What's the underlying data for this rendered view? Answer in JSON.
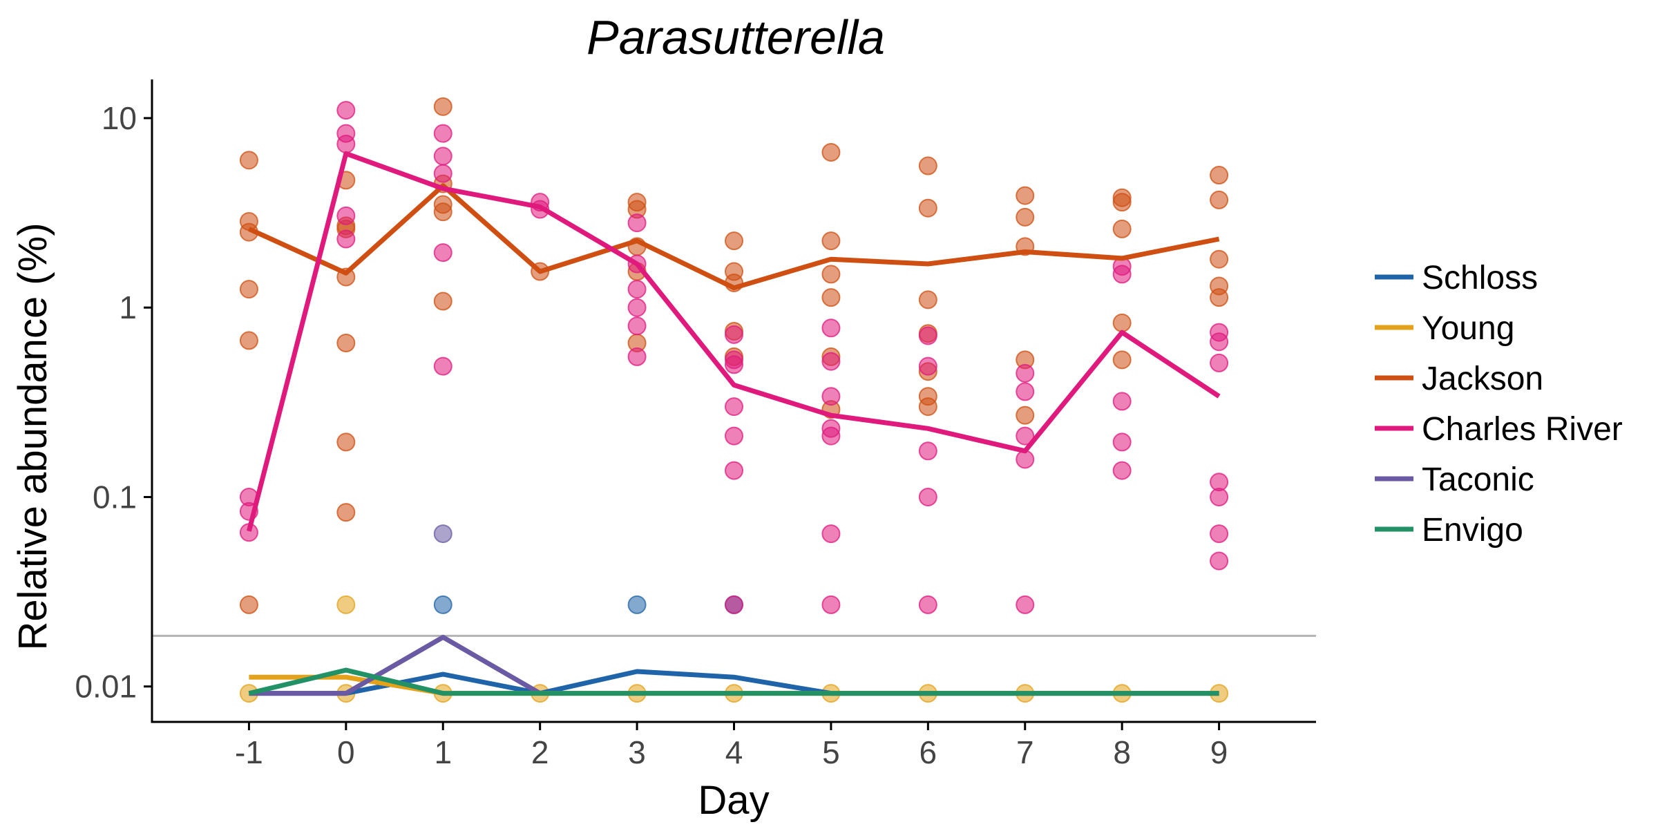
{
  "chart_data": {
    "type": "line",
    "title": "Parasutterella",
    "xlabel": "Day",
    "ylabel": "Relative abundance (%)",
    "x_ticks": [
      -1,
      0,
      1,
      2,
      3,
      4,
      5,
      6,
      7,
      8,
      9
    ],
    "x_tick_labels": [
      "-1",
      "0",
      "1",
      "2",
      "3",
      "4",
      "5",
      "6",
      "7",
      "8",
      "9"
    ],
    "xlim": [
      -2,
      10
    ],
    "y_scale": "log",
    "ylim": [
      0.0065,
      16
    ],
    "y_ticks": [
      0.01,
      0.1,
      1,
      10
    ],
    "y_tick_labels": [
      "0.01",
      "0.1",
      "1",
      "10"
    ],
    "limit_of_detection": 0.0185,
    "limit_line_color": "#b3b3b3",
    "grid": false,
    "legend_position": "right",
    "series": [
      {
        "name": "Schloss",
        "color": "#1f63a8",
        "line": [
          [
            -1,
            0.0092
          ],
          [
            0,
            0.0092
          ],
          [
            1,
            0.0116
          ],
          [
            2,
            0.0092
          ],
          [
            3,
            0.012
          ],
          [
            4,
            0.0112
          ],
          [
            5,
            0.0092
          ],
          [
            6,
            0.0092
          ],
          [
            7,
            0.0092
          ],
          [
            8,
            0.0092
          ],
          [
            9,
            0.0092
          ]
        ],
        "points": [
          [
            1,
            0.027
          ],
          [
            3,
            0.027
          ],
          [
            4,
            0.027
          ]
        ]
      },
      {
        "name": "Young",
        "color": "#e3a21a",
        "line": [
          [
            -1,
            0.0112
          ],
          [
            0,
            0.0112
          ],
          [
            1,
            0.0092
          ],
          [
            2,
            0.0092
          ],
          [
            3,
            0.0092
          ],
          [
            4,
            0.0092
          ],
          [
            5,
            0.0092
          ],
          [
            6,
            0.0092
          ],
          [
            7,
            0.0092
          ],
          [
            8,
            0.0092
          ],
          [
            9,
            0.0092
          ]
        ],
        "points": [
          [
            -1,
            0.0092
          ],
          [
            0,
            0.0092
          ],
          [
            1,
            0.0092
          ],
          [
            2,
            0.0092
          ],
          [
            3,
            0.0092
          ],
          [
            4,
            0.0092
          ],
          [
            5,
            0.0092
          ],
          [
            6,
            0.0092
          ],
          [
            7,
            0.0092
          ],
          [
            8,
            0.0092
          ],
          [
            9,
            0.0092
          ],
          [
            0,
            0.027
          ]
        ]
      },
      {
        "name": "Jackson",
        "color": "#cf4f12",
        "line": [
          [
            -1,
            2.6
          ],
          [
            0,
            1.52
          ],
          [
            1,
            4.4
          ],
          [
            2,
            1.55
          ],
          [
            3,
            2.25
          ],
          [
            4,
            1.27
          ],
          [
            5,
            1.8
          ],
          [
            6,
            1.7
          ],
          [
            7,
            1.97
          ],
          [
            8,
            1.82
          ],
          [
            9,
            2.3
          ]
        ],
        "points": [
          [
            -1,
            6.0
          ],
          [
            -1,
            2.85
          ],
          [
            -1,
            2.5
          ],
          [
            -1,
            1.25
          ],
          [
            -1,
            0.67
          ],
          [
            -1,
            0.027
          ],
          [
            0,
            4.7
          ],
          [
            0,
            2.7
          ],
          [
            0,
            2.6
          ],
          [
            0,
            1.45
          ],
          [
            0,
            0.65
          ],
          [
            0,
            0.195
          ],
          [
            0,
            0.083
          ],
          [
            1,
            11.5
          ],
          [
            1,
            4.5
          ],
          [
            1,
            3.5
          ],
          [
            1,
            3.2
          ],
          [
            1,
            1.08
          ],
          [
            2,
            1.55
          ],
          [
            3,
            3.6
          ],
          [
            3,
            3.3
          ],
          [
            3,
            2.1
          ],
          [
            3,
            1.55
          ],
          [
            3,
            0.65
          ],
          [
            4,
            2.25
          ],
          [
            4,
            1.55
          ],
          [
            4,
            1.35
          ],
          [
            4,
            0.75
          ],
          [
            4,
            0.55
          ],
          [
            5,
            6.6
          ],
          [
            5,
            2.25
          ],
          [
            5,
            1.5
          ],
          [
            5,
            1.13
          ],
          [
            5,
            0.55
          ],
          [
            5,
            0.29
          ],
          [
            6,
            5.6
          ],
          [
            6,
            3.35
          ],
          [
            6,
            1.1
          ],
          [
            6,
            0.73
          ],
          [
            6,
            0.46
          ],
          [
            6,
            0.34
          ],
          [
            6,
            0.3
          ],
          [
            7,
            3.9
          ],
          [
            7,
            3.0
          ],
          [
            7,
            2.1
          ],
          [
            7,
            0.53
          ],
          [
            7,
            0.27
          ],
          [
            8,
            3.8
          ],
          [
            8,
            3.6
          ],
          [
            8,
            2.6
          ],
          [
            8,
            0.83
          ],
          [
            8,
            0.53
          ],
          [
            9,
            5.0
          ],
          [
            9,
            3.7
          ],
          [
            9,
            1.8
          ],
          [
            9,
            1.3
          ],
          [
            9,
            1.13
          ]
        ]
      },
      {
        "name": "Charles River",
        "color": "#e0197d",
        "line": [
          [
            -1,
            0.066
          ],
          [
            0,
            6.5
          ],
          [
            1,
            4.25
          ],
          [
            2,
            3.4
          ],
          [
            3,
            1.7
          ],
          [
            4,
            0.39
          ],
          [
            5,
            0.27
          ],
          [
            6,
            0.23
          ],
          [
            7,
            0.175
          ],
          [
            8,
            0.74
          ],
          [
            9,
            0.34
          ]
        ],
        "points": [
          [
            -1,
            0.1
          ],
          [
            -1,
            0.084
          ],
          [
            -1,
            0.065
          ],
          [
            0,
            11.0
          ],
          [
            0,
            8.3
          ],
          [
            0,
            7.3
          ],
          [
            0,
            3.05
          ],
          [
            0,
            2.3
          ],
          [
            1,
            8.3
          ],
          [
            1,
            6.3
          ],
          [
            1,
            5.1
          ],
          [
            1,
            1.95
          ],
          [
            1,
            0.49
          ],
          [
            2,
            3.6
          ],
          [
            2,
            3.3
          ],
          [
            3,
            2.8
          ],
          [
            3,
            1.7
          ],
          [
            3,
            1.25
          ],
          [
            3,
            1.0
          ],
          [
            3,
            0.8
          ],
          [
            3,
            0.55
          ],
          [
            4,
            0.72
          ],
          [
            4,
            0.53
          ],
          [
            4,
            0.5
          ],
          [
            4,
            0.3
          ],
          [
            4,
            0.21
          ],
          [
            4,
            0.138
          ],
          [
            4,
            0.027
          ],
          [
            5,
            0.78
          ],
          [
            5,
            0.52
          ],
          [
            5,
            0.34
          ],
          [
            5,
            0.23
          ],
          [
            5,
            0.21
          ],
          [
            5,
            0.064
          ],
          [
            5,
            0.027
          ],
          [
            6,
            0.71
          ],
          [
            6,
            0.49
          ],
          [
            6,
            0.175
          ],
          [
            6,
            0.1
          ],
          [
            6,
            0.027
          ],
          [
            7,
            0.45
          ],
          [
            7,
            0.36
          ],
          [
            7,
            0.21
          ],
          [
            7,
            0.158
          ],
          [
            7,
            0.027
          ],
          [
            8,
            1.65
          ],
          [
            8,
            1.5
          ],
          [
            8,
            0.32
          ],
          [
            8,
            0.195
          ],
          [
            8,
            0.138
          ],
          [
            9,
            0.74
          ],
          [
            9,
            0.66
          ],
          [
            9,
            0.51
          ],
          [
            9,
            0.12
          ],
          [
            9,
            0.1
          ],
          [
            9,
            0.064
          ],
          [
            9,
            0.046
          ]
        ]
      },
      {
        "name": "Taconic",
        "color": "#6a5aa3",
        "line": [
          [
            -1,
            0.0092
          ],
          [
            0,
            0.0092
          ],
          [
            1,
            0.0182
          ],
          [
            2,
            0.0092
          ]
        ],
        "points": [
          [
            1,
            0.064
          ]
        ]
      },
      {
        "name": "Envigo",
        "color": "#239166",
        "line": [
          [
            -1,
            0.0092
          ],
          [
            0,
            0.0122
          ],
          [
            1,
            0.0092
          ],
          [
            2,
            0.0092
          ],
          [
            3,
            0.0092
          ],
          [
            4,
            0.0092
          ],
          [
            5,
            0.0092
          ],
          [
            6,
            0.0092
          ],
          [
            7,
            0.0092
          ],
          [
            8,
            0.0092
          ],
          [
            9,
            0.0092
          ]
        ],
        "points": []
      }
    ]
  }
}
